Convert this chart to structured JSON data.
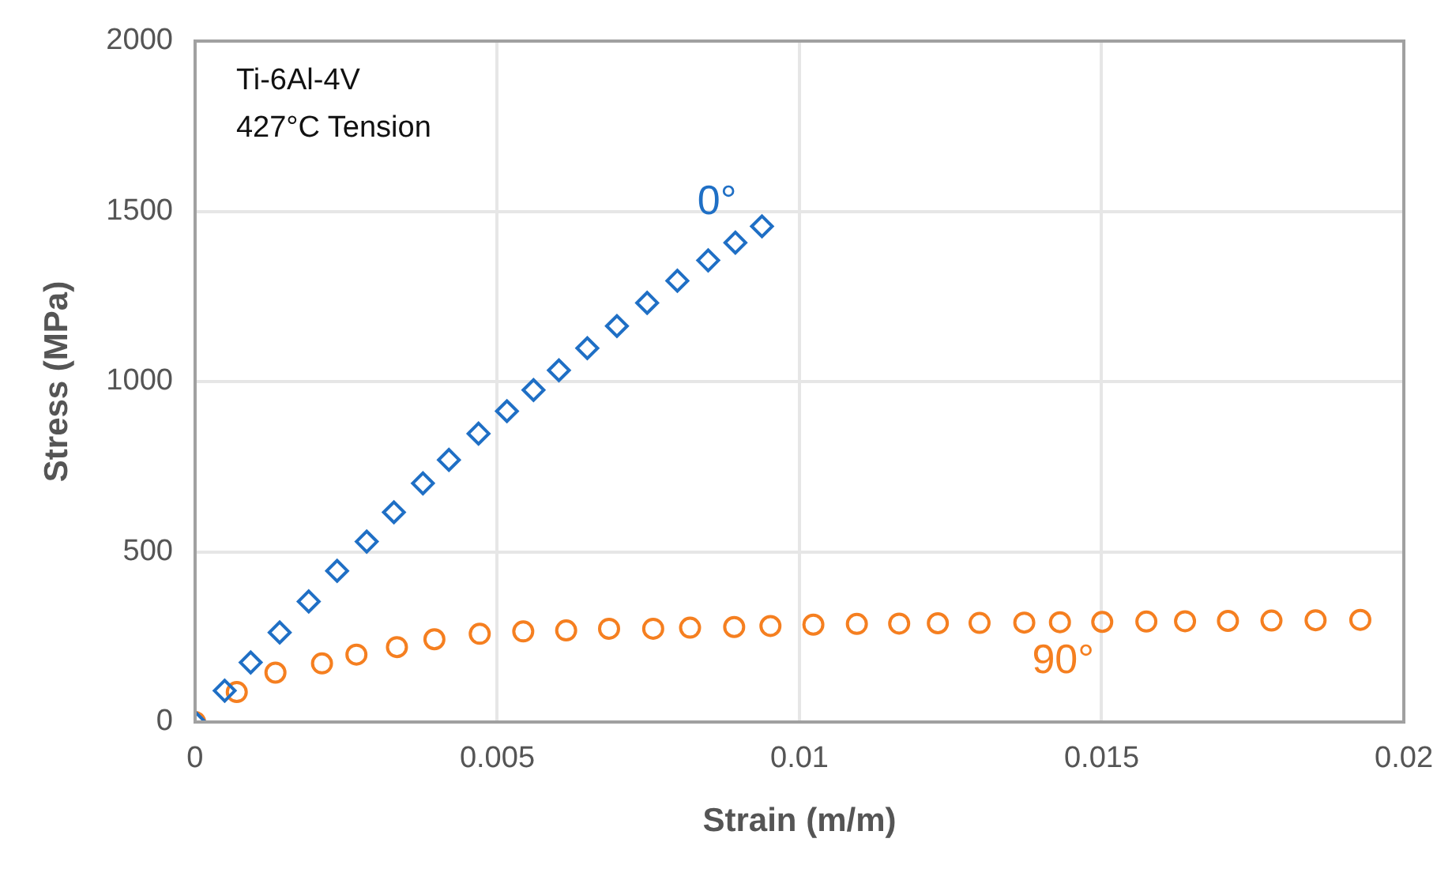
{
  "chart_data": {
    "type": "scatter",
    "xlabel": "Strain (m/m)",
    "ylabel": "Stress (MPa)",
    "annotations": [
      "Ti-6Al-4V",
      "427°C Tension"
    ],
    "xlim": [
      0,
      0.02
    ],
    "xticks": [
      0,
      0.005,
      0.01,
      0.015,
      0.02
    ],
    "ylim": [
      0,
      2000
    ],
    "yticks": [
      0,
      500,
      1000,
      1500,
      2000
    ],
    "grid": true,
    "legend": false,
    "series": [
      {
        "name": "0°",
        "color": "#1f6fc5",
        "marker": "diamond",
        "x": [
          0,
          0.00049,
          0.00092,
          0.0014,
          0.00188,
          0.00235,
          0.00284,
          0.00329,
          0.00377,
          0.0042,
          0.00469,
          0.00516,
          0.0056,
          0.00602,
          0.00649,
          0.00698,
          0.00748,
          0.00798,
          0.00849,
          0.00894,
          0.00938
        ],
        "values": [
          0,
          92,
          175,
          263,
          354,
          444,
          530,
          616,
          701,
          770,
          847,
          913,
          975,
          1033,
          1098,
          1163,
          1231,
          1296,
          1356,
          1408,
          1456
        ]
      },
      {
        "name": "90°",
        "color": "#f57f20",
        "marker": "circle",
        "x": [
          0,
          0.00069,
          0.00133,
          0.0021,
          0.00267,
          0.00334,
          0.00396,
          0.00471,
          0.00543,
          0.00614,
          0.00685,
          0.00758,
          0.00819,
          0.00892,
          0.00952,
          0.01023,
          0.01095,
          0.01165,
          0.01229,
          0.01298,
          0.01372,
          0.01431,
          0.01501,
          0.01574,
          0.01638,
          0.01709,
          0.01781,
          0.01854,
          0.01928
        ],
        "values": [
          0,
          88,
          145,
          172,
          198,
          220,
          243,
          259,
          266,
          269,
          274,
          274,
          277,
          279,
          282,
          286,
          288,
          289,
          290,
          291,
          292,
          293,
          294,
          295,
          296,
          297,
          298,
          299,
          300
        ]
      }
    ]
  }
}
